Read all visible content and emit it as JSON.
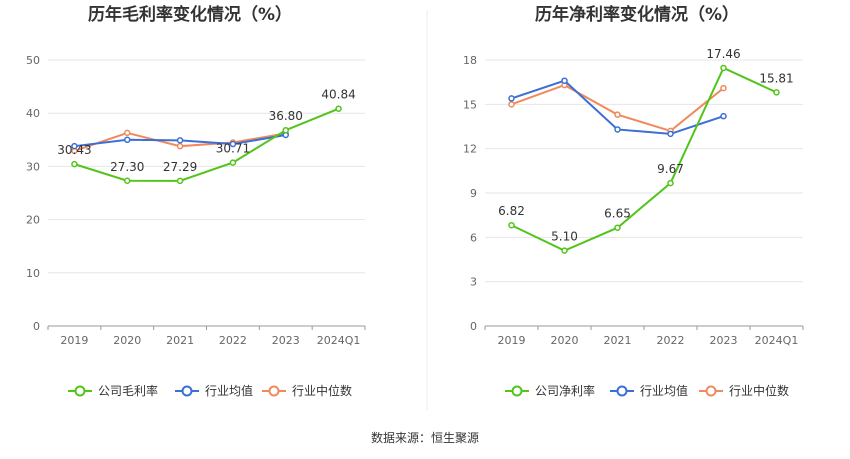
{
  "footer": "数据来源：恒生聚源",
  "colors": {
    "company": "#52c41a",
    "industry_avg": "#3b6fd6",
    "industry_median": "#f08a5d",
    "grid": "#e6e6e6",
    "axis": "#999999",
    "divider": "#eeeeee"
  },
  "chart_data": [
    {
      "type": "line",
      "title": "历年毛利率变化情况（%）",
      "categories": [
        "2019",
        "2020",
        "2021",
        "2022",
        "2023",
        "2024Q1"
      ],
      "ylim": [
        0,
        50
      ],
      "yticks": [
        0,
        10,
        20,
        30,
        40,
        50
      ],
      "grid": true,
      "legend_position": "bottom",
      "series": [
        {
          "name": "公司毛利率",
          "values": [
            30.43,
            27.3,
            27.29,
            30.71,
            36.8,
            40.84
          ],
          "labels": [
            "30.43",
            "27.30",
            "27.29",
            "30.71",
            "36.80",
            "40.84"
          ]
        },
        {
          "name": "行业均值",
          "values": [
            33.8,
            35.0,
            34.9,
            34.2,
            35.9,
            null
          ]
        },
        {
          "name": "行业中位数",
          "values": [
            32.9,
            36.3,
            33.8,
            34.5,
            36.2,
            null
          ]
        }
      ]
    },
    {
      "type": "line",
      "title": "历年净利率变化情况（%）",
      "categories": [
        "2019",
        "2020",
        "2021",
        "2022",
        "2023",
        "2024Q1"
      ],
      "ylim": [
        0,
        18
      ],
      "yticks": [
        0,
        3,
        6,
        9,
        12,
        15,
        18
      ],
      "grid": true,
      "legend_position": "bottom",
      "series": [
        {
          "name": "公司净利率",
          "values": [
            6.82,
            5.1,
            6.65,
            9.67,
            17.46,
            15.81
          ],
          "labels": [
            "6.82",
            "5.10",
            "6.65",
            "9.67",
            "17.46",
            "15.81"
          ]
        },
        {
          "name": "行业均值",
          "values": [
            15.4,
            16.6,
            13.3,
            13.0,
            14.2,
            null
          ]
        },
        {
          "name": "行业中位数",
          "values": [
            15.0,
            16.3,
            14.3,
            13.2,
            16.1,
            null
          ]
        }
      ]
    }
  ]
}
